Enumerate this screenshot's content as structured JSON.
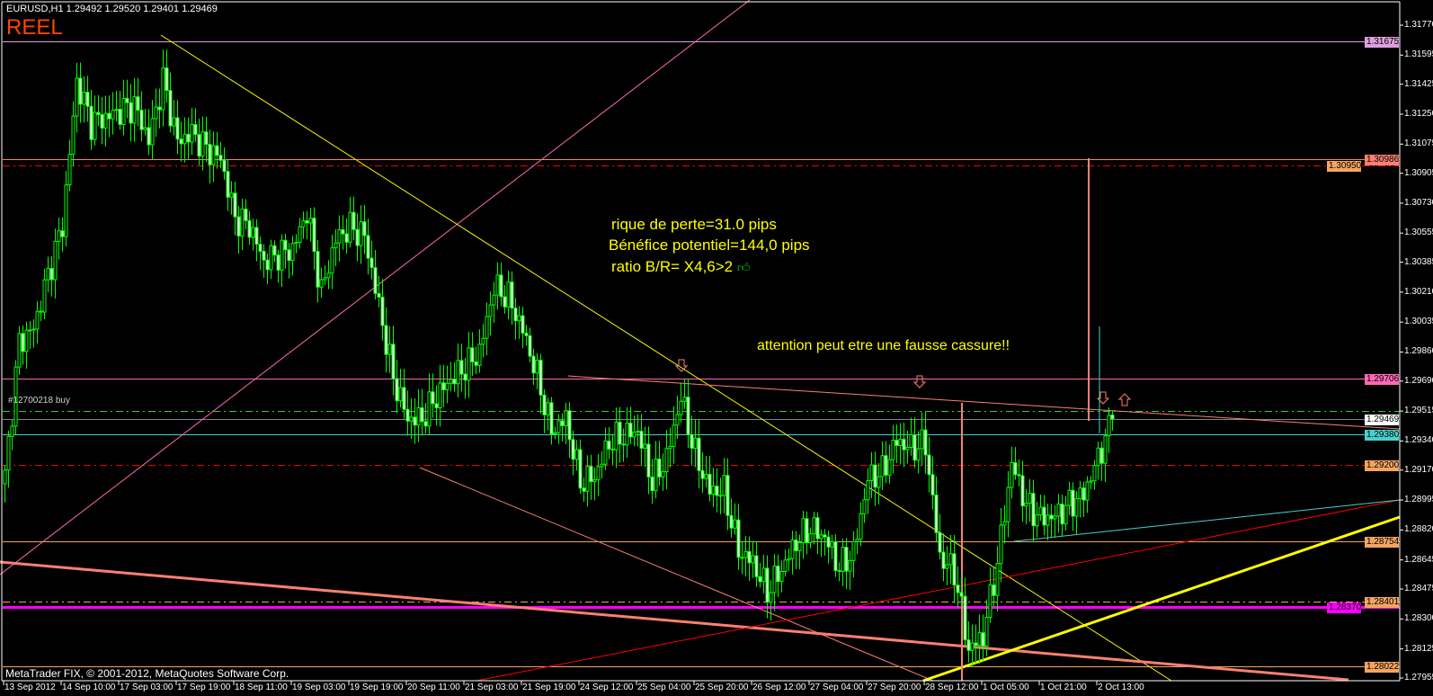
{
  "header": {
    "title": "EURUSD,H1  1.29492 1.29520 1.29401 1.29469",
    "account_mode": "REEL"
  },
  "footer": {
    "copyright": "MetaTrader FIX, © 2001-2012, MetaQuotes Software Corp."
  },
  "order_label": "#12700218 buy",
  "annotations": {
    "risk": "rique de perte=31.0 pips",
    "benefit": "Bénéfice potentiel=144,0 pips",
    "ratio": "ratio B/R= X4,6>2",
    "ratio_icon": "thumbs-up-icon",
    "warning": "attention peut etre une fausse cassure!!"
  },
  "colors": {
    "background": "#000000",
    "candle": "#00ff00",
    "frame": "#ffffff",
    "annotation_text": "#ffff00",
    "account_mode": "#ff4500",
    "arrow": "#fa8072"
  },
  "chart_data": {
    "type": "candlestick",
    "symbol": "EURUSD",
    "timeframe": "H1",
    "last_bar": {
      "open": 1.29492,
      "high": 1.2952,
      "low": 1.29401,
      "close": 1.29469
    },
    "approx_close_every_4_bars": [
      1.2913,
      1.2992,
      1.3,
      1.3031,
      1.306,
      1.3144,
      1.312,
      1.3123,
      1.3127,
      1.313,
      1.311,
      1.3145,
      1.3109,
      1.3114,
      1.3105,
      1.3099,
      1.3064,
      1.306,
      1.3039,
      1.3043,
      1.3046,
      1.3068,
      1.3021,
      1.3052,
      1.3059,
      1.3054,
      1.3013,
      1.2971,
      1.2947,
      1.2947,
      1.296,
      1.297,
      1.2977,
      1.2986,
      1.3024,
      1.3018,
      1.2999,
      1.2972,
      1.294,
      1.2947,
      1.291,
      1.2913,
      1.2933,
      1.2937,
      1.294,
      1.291,
      1.2924,
      1.296,
      1.2926,
      1.2905,
      1.2905,
      1.287,
      1.2863,
      1.2846,
      1.2859,
      1.2875,
      1.2883,
      1.2878,
      1.286,
      1.2869,
      1.2912,
      1.2916,
      1.2934,
      1.293,
      1.2932,
      1.2866,
      1.2858,
      1.2812,
      1.282,
      1.2863,
      1.2921,
      1.2897,
      1.2889,
      1.289,
      1.2897,
      1.2903,
      1.2924,
      1.29469
    ],
    "x_tick_labels": [
      "13 Sep 2012",
      "14 Sep 10:00",
      "17 Sep 03:00",
      "17 Sep 19:00",
      "18 Sep 11:00",
      "19 Sep 03:00",
      "19 Sep 19:00",
      "20 Sep 11:00",
      "21 Sep 03:00",
      "21 Sep 19:00",
      "24 Sep 12:00",
      "25 Sep 04:00",
      "25 Sep 20:00",
      "26 Sep 12:00",
      "27 Sep 04:00",
      "27 Sep 20:00",
      "28 Sep 12:00",
      "1 Oct 05:00",
      "1 Oct 21:00",
      "2 Oct 13:00"
    ],
    "y_tick_labels": [
      "1.31770",
      "1.31595",
      "1.31425",
      "1.31250",
      "1.31075",
      "1.30905",
      "1.30730",
      "1.30555",
      "1.30385",
      "1.30210",
      "1.30035",
      "1.29860",
      "1.29690",
      "1.29515",
      "1.29340",
      "1.29170",
      "1.28995",
      "1.28820",
      "1.28645",
      "1.28475",
      "1.28300",
      "1.28125",
      "1.27955"
    ],
    "ylim": [
      1.27955,
      1.3177
    ],
    "price_levels": [
      {
        "price": 1.31675,
        "label": "1.31675",
        "color": "#dda0dd",
        "style": "solid",
        "tag": true
      },
      {
        "price": 1.30986,
        "label": "1.30986",
        "color": "#fa8072",
        "style": "solid",
        "tag": true
      },
      {
        "price": 1.3095,
        "label": "1.30950",
        "color": "#ff0000",
        "tag_color": "#f4a460",
        "style": "dashdot",
        "tag": true
      },
      {
        "price": 1.29706,
        "label": "1.29706",
        "color": "#ff69b4",
        "style": "solid",
        "tag": true
      },
      {
        "price": 1.29515,
        "label": "",
        "color": "#32cd32",
        "style": "dashdot",
        "tag": false
      },
      {
        "price": 1.29469,
        "label": "1.29469",
        "color": "#778899",
        "tag_color": "#ffffff",
        "style": "solid",
        "tag": true
      },
      {
        "price": 1.2938,
        "label": "1.29380",
        "color": "#48d1cc",
        "style": "solid",
        "tag": true
      },
      {
        "price": 1.292,
        "label": "1.29200",
        "color": "#ff0000",
        "tag_color": "#f4a460",
        "style": "dashdot",
        "tag": true
      },
      {
        "price": 1.28754,
        "label": "1.28754",
        "color": "#f4a460",
        "style": "solid",
        "tag": true
      },
      {
        "price": 1.28401,
        "label": "1.28401",
        "color": "#f4a460",
        "style": "dashdot",
        "tag": true
      },
      {
        "price": 1.2837,
        "label": "1.28370",
        "color": "#ff00ff",
        "style": "thick",
        "tag": true
      },
      {
        "price": 1.28022,
        "label": "1.28022",
        "color": "#f4a460",
        "style": "solid",
        "tag": true
      }
    ],
    "trendlines": [
      {
        "name": "pink-ascending-line",
        "color": "#ff69b4"
      },
      {
        "name": "yellow-descending-line",
        "color": "#ffff00"
      },
      {
        "name": "salmon-lower-channel-line",
        "color": "#fa8072"
      },
      {
        "name": "salmon-upper-channel-line",
        "color": "#fa8072"
      },
      {
        "name": "salmon-thick-support-line",
        "color": "#fa8072"
      },
      {
        "name": "red-ascending-line",
        "color": "#ff0000"
      },
      {
        "name": "cyan-ascending-line",
        "color": "#48d1cc"
      },
      {
        "name": "yellow-thick-support-line",
        "color": "#ffff00"
      }
    ],
    "arrows": [
      {
        "direction": "down",
        "icon": "down-arrow-icon"
      },
      {
        "direction": "down",
        "icon": "down-arrow-icon"
      },
      {
        "direction": "down",
        "icon": "down-arrow-icon"
      },
      {
        "direction": "up",
        "icon": "up-arrow-icon"
      }
    ]
  }
}
